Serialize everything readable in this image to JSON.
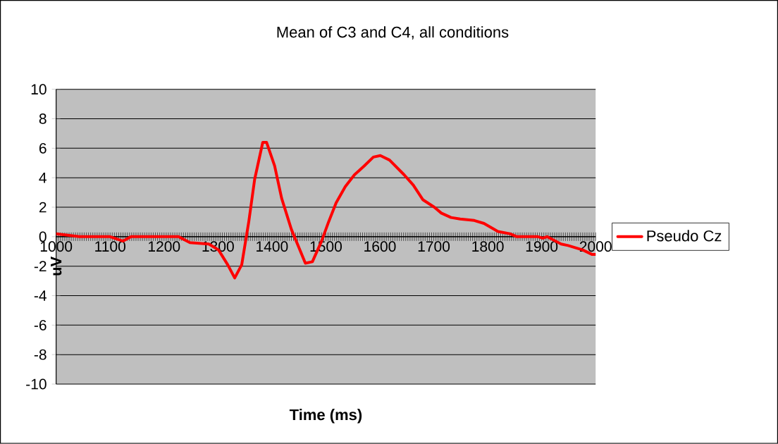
{
  "chart_data": {
    "type": "line",
    "title": "Mean of C3 and C4, all conditions",
    "xlabel": "Time (ms)",
    "ylabel": "uV",
    "xlim": [
      1000,
      2000
    ],
    "xticks": [
      1000,
      1100,
      1200,
      1300,
      1400,
      1500,
      1600,
      1700,
      1800,
      1900,
      2000
    ],
    "ylim": [
      -10,
      10
    ],
    "yticks": [
      -10,
      -8,
      -6,
      -4,
      -2,
      0,
      2,
      4,
      6,
      8,
      10
    ],
    "grid": "y",
    "legend": "right",
    "marker": "none",
    "line_style": "solid",
    "series": [
      {
        "name": "Pseudo Cz",
        "color": "#ff0000",
        "x": [
          1000,
          1043,
          1100,
          1124,
          1139,
          1157,
          1196,
          1227,
          1248,
          1283,
          1301,
          1318,
          1331,
          1344,
          1357,
          1368,
          1383,
          1390,
          1405,
          1418,
          1436,
          1462,
          1475,
          1492,
          1505,
          1519,
          1536,
          1553,
          1571,
          1588,
          1601,
          1618,
          1645,
          1662,
          1680,
          1701,
          1714,
          1732,
          1749,
          1775,
          1793,
          1819,
          1841,
          1854,
          1893,
          1902,
          1910,
          1936,
          1949,
          1976,
          1993,
          2000
        ],
        "values": [
          0.2,
          0.0,
          0.0,
          -0.3,
          0.0,
          0.0,
          0.0,
          0.0,
          -0.4,
          -0.5,
          -0.9,
          -1.9,
          -2.8,
          -1.9,
          1.0,
          3.9,
          6.4,
          6.4,
          4.8,
          2.6,
          0.5,
          -1.8,
          -1.7,
          -0.3,
          1.0,
          2.3,
          3.4,
          4.2,
          4.8,
          5.4,
          5.5,
          5.2,
          4.2,
          3.5,
          2.5,
          2.0,
          1.6,
          1.3,
          1.2,
          1.1,
          0.9,
          0.35,
          0.2,
          0.0,
          0.0,
          -0.1,
          0.0,
          -0.5,
          -0.6,
          -0.9,
          -1.2,
          -1.2
        ]
      }
    ]
  }
}
